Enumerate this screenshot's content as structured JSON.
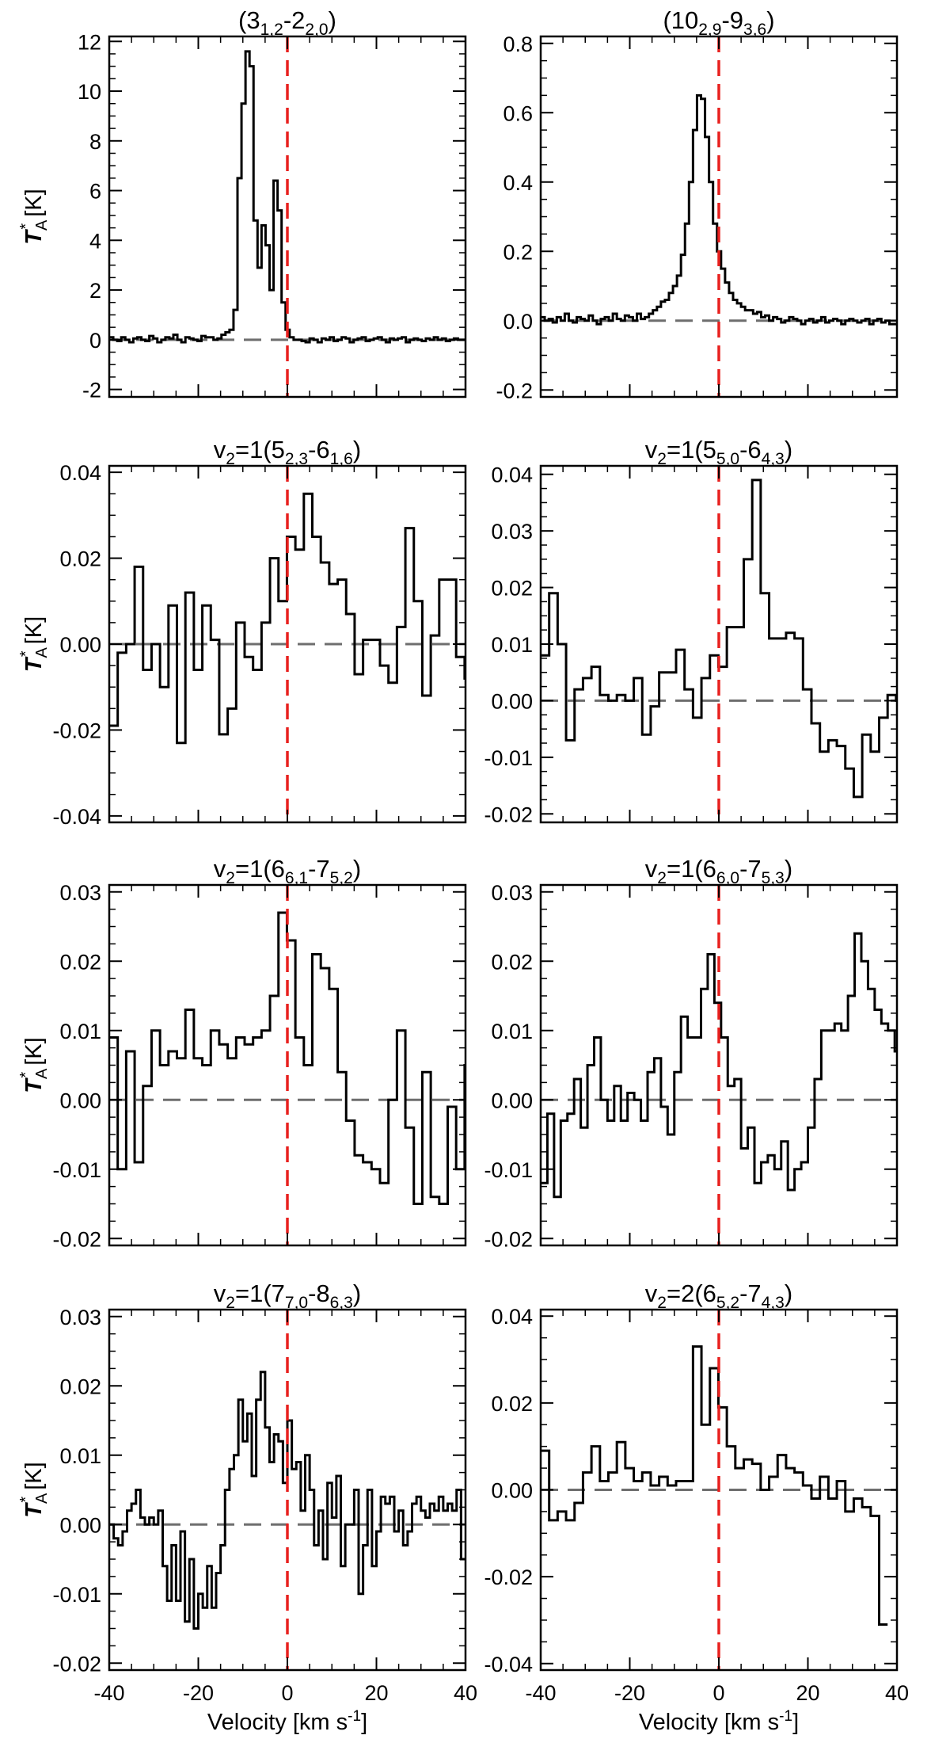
{
  "figure": {
    "x_label": "Velocity [km s",
    "x_label_sup": "-1",
    "x_label_end": "]",
    "y_label_main": "T",
    "y_label_sub": "A",
    "y_label_sup": "*",
    "y_label_unit": " [K]"
  },
  "chart_data": [
    {
      "type": "line",
      "step": true,
      "title_prefix": "",
      "title_main": "(3",
      "title_sub1": "1,2",
      "title_mid": "-2",
      "title_sub2": "2,0",
      "title_suffix": ")",
      "xlim": [
        -40,
        40
      ],
      "ylim": [
        -2.3,
        12.2
      ],
      "yticks": [
        -2,
        0,
        2,
        4,
        6,
        8,
        10,
        12
      ],
      "yticklabels": [
        "-2",
        "0",
        "2",
        "4",
        "6",
        "8",
        "10",
        "12"
      ],
      "xticks": [
        -40,
        -20,
        0,
        20,
        40
      ],
      "show_xticklabels": false,
      "x_start": -40,
      "dx": 0.9,
      "values": [
        0.1,
        0.0,
        -0.05,
        0.1,
        0.0,
        -0.1,
        0.05,
        0.1,
        0.0,
        -0.05,
        0.15,
        0.05,
        -0.1,
        0.0,
        0.1,
        0.05,
        0.2,
        0.0,
        -0.1,
        0.1,
        0.05,
        0.0,
        -0.05,
        0.15,
        0.1,
        0.1,
        0.0,
        0.05,
        0.2,
        0.3,
        0.4,
        1.2,
        6.5,
        9.5,
        11.6,
        11.0,
        4.8,
        2.9,
        4.6,
        3.8,
        2.0,
        6.4,
        5.2,
        1.5,
        0.4,
        0.1,
        0.0,
        0.0,
        -0.05,
        -0.1,
        0.05,
        0.0,
        -0.1,
        0.05,
        0.0,
        0.1,
        -0.05,
        0.0,
        0.1,
        0.05,
        -0.1,
        0.0,
        0.05,
        0.1,
        -0.05,
        0.0,
        0.05,
        0.1,
        0.0,
        -0.1,
        0.05,
        0.0,
        0.05,
        0.1,
        -0.1,
        0.0,
        0.05,
        0.0,
        -0.05,
        0.05,
        0.0,
        0.1,
        0.0,
        0.05,
        -0.05,
        0.0,
        0.05,
        0.0,
        0.0
      ]
    },
    {
      "type": "line",
      "step": true,
      "title_prefix": "",
      "title_main": "(10",
      "title_sub1": "2,9",
      "title_mid": "-9",
      "title_sub2": "3,6",
      "title_suffix": ")",
      "xlim": [
        -40,
        40
      ],
      "ylim": [
        -0.22,
        0.82
      ],
      "yticks": [
        -0.2,
        0.0,
        0.2,
        0.4,
        0.6,
        0.8
      ],
      "yticklabels": [
        "-0.2",
        "0.0",
        "0.2",
        "0.4",
        "0.6",
        "0.8"
      ],
      "xticks": [
        -40,
        -20,
        0,
        20,
        40
      ],
      "show_xticklabels": false,
      "x_start": -40,
      "dx": 0.9,
      "values": [
        0.01,
        0.0,
        0.005,
        -0.005,
        0.01,
        0.0,
        0.02,
        0.0,
        -0.005,
        0.01,
        0.005,
        0.0,
        0.015,
        0.0,
        -0.01,
        0.005,
        0.01,
        0.0,
        0.02,
        0.005,
        0.0,
        0.015,
        0.01,
        0.0,
        0.02,
        0.005,
        0.01,
        0.02,
        0.03,
        0.04,
        0.055,
        0.06,
        0.08,
        0.1,
        0.13,
        0.19,
        0.28,
        0.4,
        0.55,
        0.65,
        0.64,
        0.53,
        0.4,
        0.28,
        0.2,
        0.15,
        0.11,
        0.08,
        0.06,
        0.05,
        0.04,
        0.03,
        0.03,
        0.02,
        0.025,
        0.01,
        0.015,
        0.0,
        0.01,
        0.005,
        -0.005,
        0.0,
        0.01,
        0.005,
        0.0,
        -0.01,
        0.0,
        0.005,
        -0.005,
        0.0,
        0.01,
        -0.005,
        0.0,
        0.005,
        0.0,
        -0.01,
        0.0,
        0.005,
        0.0,
        -0.005,
        0.0,
        0.005,
        -0.01,
        0.0,
        0.005,
        -0.005,
        0.0,
        -0.01,
        -0.01
      ]
    },
    {
      "type": "line",
      "step": true,
      "title_prefix": "v",
      "title_prefix_sub": "2",
      "title_main": "=1(5",
      "title_sub1": "2,3",
      "title_mid": "-6",
      "title_sub2": "1,6",
      "title_suffix": ")",
      "xlim": [
        -40,
        40
      ],
      "ylim": [
        -0.0415,
        0.0415
      ],
      "yticks": [
        -0.04,
        -0.02,
        0.0,
        0.02,
        0.04
      ],
      "yticklabels": [
        "-0.04",
        "-0.02",
        "0.00",
        "0.02",
        "0.04"
      ],
      "xticks": [
        -40,
        -20,
        0,
        20,
        40
      ],
      "show_xticklabels": false,
      "x_start": -40,
      "dx": 1.9,
      "values": [
        -0.019,
        -0.002,
        0.0,
        0.018,
        -0.006,
        0.0,
        -0.01,
        0.009,
        -0.023,
        0.012,
        -0.006,
        0.009,
        0.001,
        -0.021,
        -0.015,
        0.005,
        -0.003,
        -0.006,
        0.005,
        0.02,
        0.01,
        0.025,
        0.022,
        0.035,
        0.025,
        0.019,
        0.014,
        0.015,
        0.007,
        -0.007,
        0.001,
        0.001,
        -0.005,
        -0.009,
        0.004,
        0.027,
        0.01,
        -0.012,
        0.002,
        0.015,
        0.015,
        -0.003,
        -0.008,
        -0.011,
        -0.004,
        -0.007,
        -0.003,
        -0.005,
        -0.002,
        0.0,
        0.011
      ]
    },
    {
      "type": "line",
      "step": true,
      "title_prefix": "v",
      "title_prefix_sub": "2",
      "title_main": "=1(5",
      "title_sub1": "5,0",
      "title_mid": "-6",
      "title_sub2": "4,3",
      "title_suffix": ")",
      "xlim": [
        -40,
        40
      ],
      "ylim": [
        -0.0215,
        0.0415
      ],
      "yticks": [
        -0.02,
        -0.01,
        0.0,
        0.01,
        0.02,
        0.03,
        0.04
      ],
      "yticklabels": [
        "-0.02",
        "-0.01",
        "0.00",
        "0.01",
        "0.02",
        "0.03",
        "0.04"
      ],
      "xticks": [
        -40,
        -20,
        0,
        20,
        40
      ],
      "show_xticklabels": false,
      "x_start": -40,
      "dx": 1.9,
      "values": [
        0.008,
        0.019,
        0.01,
        -0.007,
        0.002,
        0.004,
        0.006,
        0.001,
        0.0,
        0.001,
        0.0,
        0.004,
        -0.006,
        -0.001,
        0.005,
        0.005,
        0.009,
        0.002,
        -0.003,
        0.004,
        0.008,
        0.006,
        0.013,
        0.013,
        0.025,
        0.039,
        0.019,
        0.011,
        0.011,
        0.012,
        0.011,
        0.002,
        -0.004,
        -0.009,
        -0.007,
        -0.008,
        -0.012,
        -0.017,
        -0.006,
        -0.009,
        -0.003,
        0.001,
        0.0,
        -0.003,
        0.0,
        0.004,
        0.008,
        0.007,
        0.005,
        -0.003,
        -0.008
      ]
    },
    {
      "type": "line",
      "step": true,
      "title_prefix": "v",
      "title_prefix_sub": "2",
      "title_main": "=1(6",
      "title_sub1": "6,1",
      "title_mid": "-7",
      "title_sub2": "5,2",
      "title_suffix": ")",
      "xlim": [
        -40,
        40
      ],
      "ylim": [
        -0.021,
        0.031
      ],
      "yticks": [
        -0.02,
        -0.01,
        0.0,
        0.01,
        0.02,
        0.03
      ],
      "yticklabels": [
        "-0.02",
        "-0.01",
        "0.00",
        "0.01",
        "0.02",
        "0.03"
      ],
      "xticks": [
        -40,
        -20,
        0,
        20,
        40
      ],
      "show_xticklabels": false,
      "x_start": -40,
      "dx": 1.9,
      "values": [
        0.009,
        -0.01,
        0.007,
        -0.009,
        0.002,
        0.01,
        0.005,
        0.007,
        0.006,
        0.013,
        0.006,
        0.005,
        0.01,
        0.008,
        0.006,
        0.009,
        0.008,
        0.009,
        0.01,
        0.015,
        0.027,
        0.023,
        0.009,
        0.005,
        0.021,
        0.019,
        0.016,
        0.004,
        -0.003,
        -0.008,
        -0.009,
        -0.01,
        -0.012,
        0.0,
        0.01,
        -0.004,
        -0.015,
        0.004,
        -0.014,
        -0.015,
        -0.001,
        -0.01,
        0.005,
        -0.012,
        -0.014
      ]
    },
    {
      "type": "line",
      "step": true,
      "title_prefix": "v",
      "title_prefix_sub": "2",
      "title_main": "=1(6",
      "title_sub1": "6,0",
      "title_mid": "-7",
      "title_sub2": "5,3",
      "title_suffix": ")",
      "xlim": [
        -40,
        40
      ],
      "ylim": [
        -0.021,
        0.031
      ],
      "yticks": [
        -0.02,
        -0.01,
        0.0,
        0.01,
        0.02,
        0.03
      ],
      "yticklabels": [
        "-0.02",
        "-0.01",
        "0.00",
        "0.01",
        "0.02",
        "0.03"
      ],
      "xticks": [
        -40,
        -20,
        0,
        20,
        40
      ],
      "show_xticklabels": false,
      "x_start": -40,
      "dx": 1.5,
      "values": [
        -0.012,
        -0.002,
        -0.014,
        -0.003,
        -0.002,
        0.003,
        -0.004,
        0.005,
        0.009,
        0.0,
        -0.003,
        0.002,
        -0.003,
        0.001,
        0.0,
        -0.003,
        0.004,
        0.006,
        -0.001,
        -0.005,
        0.004,
        0.012,
        0.009,
        0.009,
        0.016,
        0.021,
        0.014,
        0.009,
        0.002,
        0.003,
        -0.007,
        -0.004,
        -0.012,
        -0.009,
        -0.008,
        -0.01,
        -0.006,
        -0.013,
        -0.01,
        -0.009,
        -0.004,
        0.003,
        0.01,
        0.01,
        0.011,
        0.01,
        0.015,
        0.024,
        0.02,
        0.016,
        0.013,
        0.011,
        0.01,
        0.007
      ]
    },
    {
      "type": "line",
      "step": true,
      "title_prefix": "v",
      "title_prefix_sub": "2",
      "title_main": "=1(7",
      "title_sub1": "7,0",
      "title_mid": "-8",
      "title_sub2": "6,3",
      "title_suffix": ")",
      "xlim": [
        -40,
        40
      ],
      "ylim": [
        -0.021,
        0.031
      ],
      "yticks": [
        -0.02,
        -0.01,
        0.0,
        0.01,
        0.02,
        0.03
      ],
      "yticklabels": [
        "-0.02",
        "-0.01",
        "0.00",
        "0.01",
        "0.02",
        "0.03"
      ],
      "xticks": [
        -40,
        -20,
        0,
        20,
        40
      ],
      "show_xticklabels": false,
      "x_start": -40,
      "dx": 1.0,
      "values": [
        0.0,
        -0.002,
        -0.003,
        -0.001,
        0.002,
        0.003,
        0.005,
        0.001,
        0.0,
        0.001,
        0.0,
        0.002,
        -0.006,
        -0.011,
        -0.003,
        -0.011,
        -0.001,
        -0.014,
        -0.005,
        -0.015,
        -0.01,
        -0.012,
        -0.006,
        -0.012,
        -0.007,
        -0.003,
        0.005,
        0.008,
        0.01,
        0.018,
        0.012,
        0.016,
        0.007,
        0.018,
        0.022,
        0.014,
        0.009,
        0.013,
        0.012,
        0.006,
        0.015,
        0.008,
        0.009,
        0.002,
        0.01,
        0.005,
        -0.003,
        0.002,
        -0.005,
        0.006,
        0.001,
        0.007,
        -0.006,
        0.0,
        0.0,
        0.005,
        -0.01,
        -0.003,
        0.005,
        -0.006,
        -0.001,
        0.004,
        0.003,
        0.004,
        -0.001,
        0.002,
        -0.003,
        -0.001,
        0.003,
        0.004,
        0.002,
        0.001,
        0.003,
        0.002,
        0.004,
        0.002,
        0.003,
        0.002,
        0.005,
        -0.005
      ]
    },
    {
      "type": "line",
      "step": true,
      "title_prefix": "v",
      "title_prefix_sub": "2",
      "title_main": "=2(6",
      "title_sub1": "5,2",
      "title_mid": "-7",
      "title_sub2": "4,3",
      "title_suffix": ")",
      "xlim": [
        -40,
        40
      ],
      "ylim": [
        -0.0415,
        0.0415
      ],
      "yticks": [
        -0.04,
        -0.02,
        0.0,
        0.02,
        0.04
      ],
      "yticklabels": [
        "-0.04",
        "-0.02",
        "0.00",
        "0.02",
        "0.04"
      ],
      "xticks": [
        -40,
        -20,
        0,
        20,
        40
      ],
      "show_xticklabels": true,
      "xticklabels": [
        "-40",
        "-20",
        "0",
        "20",
        "40"
      ],
      "x_start": -40,
      "dx": 1.9,
      "values": [
        0.009,
        -0.007,
        -0.005,
        -0.007,
        -0.003,
        0.004,
        0.01,
        0.002,
        0.004,
        0.011,
        0.005,
        0.002,
        0.004,
        0.001,
        0.003,
        0.001,
        0.002,
        0.002,
        0.033,
        0.015,
        0.028,
        0.019,
        0.01,
        0.005,
        0.007,
        0.006,
        0.0,
        0.003,
        0.008,
        0.005,
        0.004,
        0.001,
        -0.002,
        0.003,
        -0.002,
        0.002,
        -0.005,
        -0.002,
        -0.004,
        -0.006,
        -0.031
      ]
    }
  ]
}
